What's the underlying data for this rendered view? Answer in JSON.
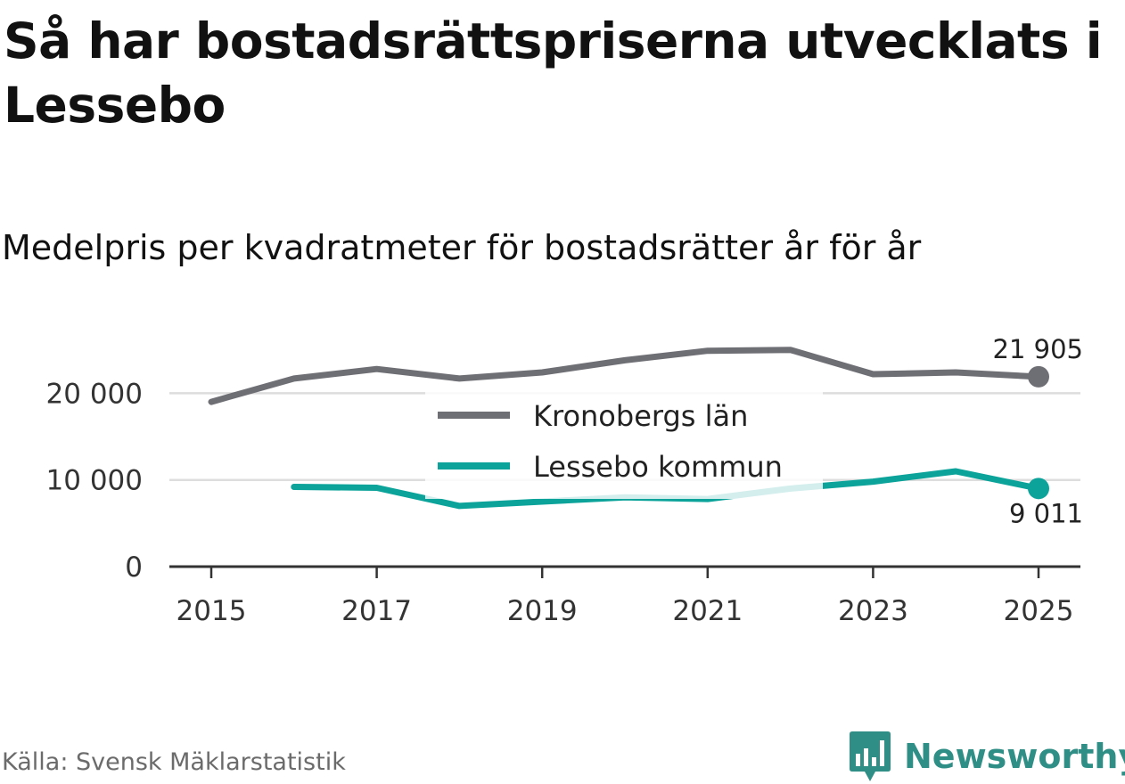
{
  "title": "Så har bostadsrättspriserna utvecklats i Lessebo",
  "subtitle": "Medelpris per kvadratmeter för bostadsrätter år för år",
  "source": "Källa: Svensk Mäklarstatistik",
  "brand": {
    "name": "Newsworthy",
    "icon": "bar-chart-bubble-icon",
    "color": "#2f8f86"
  },
  "chart_data": {
    "type": "line",
    "title": "Så har bostadsrättspriserna utvecklats i Lessebo",
    "subtitle": "Medelpris per kvadratmeter för bostadsrätter år för år",
    "xlabel": "",
    "ylabel": "",
    "xlim": [
      2015,
      2025
    ],
    "ylim": [
      0,
      25000
    ],
    "grid": true,
    "legend_position": "center",
    "x_ticks": [
      2015,
      2017,
      2019,
      2021,
      2023,
      2025
    ],
    "x_tick_labels": [
      "2015",
      "2017",
      "2019",
      "2021",
      "2023",
      "2025"
    ],
    "y_ticks": [
      0,
      10000,
      20000
    ],
    "y_tick_labels": [
      "0",
      "10 000",
      "20 000"
    ],
    "series": [
      {
        "name": "Kronobergs län",
        "color": "#6e6e75",
        "x": [
          2015,
          2016,
          2017,
          2018,
          2019,
          2020,
          2021,
          2022,
          2023,
          2024,
          2025
        ],
        "values": [
          19000,
          21700,
          22800,
          21700,
          22400,
          23800,
          24900,
          25000,
          22200,
          22400,
          21905
        ],
        "end_label": "21 905"
      },
      {
        "name": "Lessebo kommun",
        "color": "#0ca39a",
        "x": [
          2016,
          2017,
          2018,
          2019,
          2020,
          2021,
          2022,
          2023,
          2024,
          2025
        ],
        "values": [
          9200,
          9100,
          7000,
          7500,
          8000,
          7800,
          9000,
          9800,
          11000,
          9011
        ],
        "end_label": "9 011"
      }
    ]
  }
}
